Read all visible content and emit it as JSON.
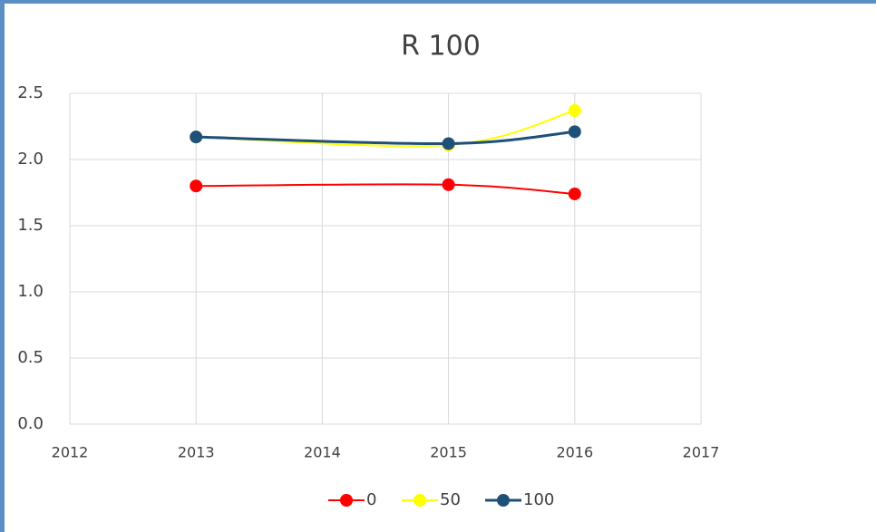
{
  "chart_data": {
    "type": "line",
    "title": "R 100",
    "x": [
      2013,
      2015,
      2016
    ],
    "series": [
      {
        "name": "0",
        "color": "#ff0000",
        "values": [
          1.8,
          1.81,
          1.74
        ]
      },
      {
        "name": "50",
        "color": "#ffff00",
        "values": [
          2.17,
          2.11,
          2.37
        ]
      },
      {
        "name": "100",
        "color": "#1f5078",
        "values": [
          2.17,
          2.12,
          2.21
        ]
      }
    ],
    "xlim": [
      2012,
      2017
    ],
    "xticks": [
      2012,
      2013,
      2014,
      2015,
      2016,
      2017
    ],
    "ylim": [
      0,
      2.5
    ],
    "yticks": [
      {
        "value": 0,
        "label": "0.0"
      },
      0.5,
      {
        "value": 1,
        "label": "1.0"
      },
      1.5,
      {
        "value": 2,
        "label": "2.0"
      },
      2.5
    ],
    "grid": true,
    "smooth": true,
    "legend": "bottom"
  }
}
